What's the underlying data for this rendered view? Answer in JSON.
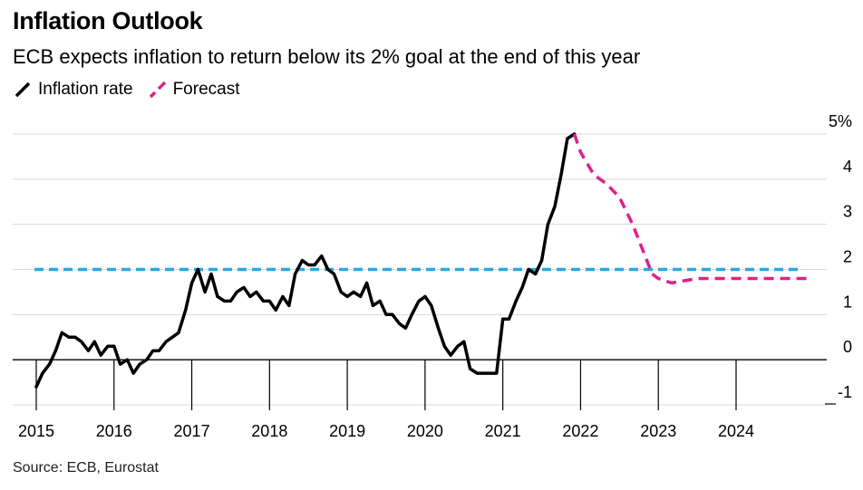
{
  "header": {
    "title": "Inflation Outlook",
    "subtitle": "ECB expects inflation to return below its 2% goal at the end of this year"
  },
  "legend": {
    "items": [
      {
        "label": "Inflation rate",
        "color": "#000000",
        "style": "solid"
      },
      {
        "label": "Forecast",
        "color": "#e0218a",
        "style": "dashed"
      }
    ]
  },
  "source": "Source: ECB, Eurostat",
  "chart_data": {
    "type": "line",
    "xlabel": "",
    "ylabel": "",
    "xlim": [
      2015.0,
      2025.0
    ],
    "ylim": [
      -1,
      5
    ],
    "grid": true,
    "legend_position": "top-left",
    "x_ticks": [
      2015,
      2016,
      2017,
      2018,
      2019,
      2020,
      2021,
      2022,
      2023,
      2024
    ],
    "x_tick_labels": [
      "2015",
      "2016",
      "2017",
      "2018",
      "2019",
      "2020",
      "2021",
      "2022",
      "2023",
      "2024"
    ],
    "y_ticks": [
      -1,
      0,
      1,
      2,
      3,
      4,
      5
    ],
    "y_tick_labels": [
      "-1",
      "0",
      "1",
      "2",
      "3",
      "4",
      "5%"
    ],
    "reference_line": {
      "y": 2,
      "color": "#29a8e0",
      "style": "dashed"
    },
    "series": [
      {
        "name": "Inflation rate",
        "color": "#000000",
        "style": "solid",
        "x": [
          2015.0,
          2015.08,
          2015.17,
          2015.25,
          2015.33,
          2015.42,
          2015.5,
          2015.58,
          2015.67,
          2015.75,
          2015.83,
          2015.92,
          2016.0,
          2016.08,
          2016.17,
          2016.25,
          2016.33,
          2016.42,
          2016.5,
          2016.58,
          2016.67,
          2016.75,
          2016.83,
          2016.92,
          2017.0,
          2017.08,
          2017.17,
          2017.25,
          2017.33,
          2017.42,
          2017.5,
          2017.58,
          2017.67,
          2017.75,
          2017.83,
          2017.92,
          2018.0,
          2018.08,
          2018.17,
          2018.25,
          2018.33,
          2018.42,
          2018.5,
          2018.58,
          2018.67,
          2018.75,
          2018.83,
          2018.92,
          2019.0,
          2019.08,
          2019.17,
          2019.25,
          2019.33,
          2019.42,
          2019.5,
          2019.58,
          2019.67,
          2019.75,
          2019.83,
          2019.92,
          2020.0,
          2020.08,
          2020.17,
          2020.25,
          2020.33,
          2020.42,
          2020.5,
          2020.58,
          2020.67,
          2020.75,
          2020.83,
          2020.92,
          2021.0,
          2021.08,
          2021.17,
          2021.25,
          2021.33,
          2021.42,
          2021.5,
          2021.58,
          2021.67,
          2021.75,
          2021.83,
          2021.92
        ],
        "y": [
          -0.6,
          -0.3,
          -0.1,
          0.2,
          0.6,
          0.5,
          0.5,
          0.4,
          0.2,
          0.4,
          0.1,
          0.3,
          0.3,
          -0.1,
          0.0,
          -0.3,
          -0.1,
          0.0,
          0.2,
          0.2,
          0.4,
          0.5,
          0.6,
          1.1,
          1.7,
          2.0,
          1.5,
          1.9,
          1.4,
          1.3,
          1.3,
          1.5,
          1.6,
          1.4,
          1.5,
          1.3,
          1.3,
          1.1,
          1.4,
          1.2,
          1.9,
          2.2,
          2.1,
          2.1,
          2.3,
          2.0,
          1.9,
          1.5,
          1.4,
          1.5,
          1.4,
          1.7,
          1.2,
          1.3,
          1.0,
          1.0,
          0.8,
          0.7,
          1.0,
          1.3,
          1.4,
          1.2,
          0.7,
          0.3,
          0.1,
          0.3,
          0.4,
          -0.2,
          -0.3,
          -0.3,
          -0.3,
          -0.3,
          0.9,
          0.9,
          1.3,
          1.6,
          2.0,
          1.9,
          2.2,
          3.0,
          3.4,
          4.1,
          4.9,
          5.0
        ]
      },
      {
        "name": "Forecast",
        "color": "#e0218a",
        "style": "dashed",
        "x": [
          2021.92,
          2022.0,
          2022.17,
          2022.33,
          2022.5,
          2022.67,
          2022.92,
          2023.0,
          2023.17,
          2023.33,
          2023.5,
          2023.67,
          2023.83,
          2024.0,
          2024.5,
          2024.92
        ],
        "y": [
          5.0,
          4.6,
          4.1,
          3.9,
          3.6,
          3.0,
          1.9,
          1.8,
          1.7,
          1.75,
          1.8,
          1.8,
          1.8,
          1.8,
          1.8,
          1.8
        ]
      }
    ]
  }
}
